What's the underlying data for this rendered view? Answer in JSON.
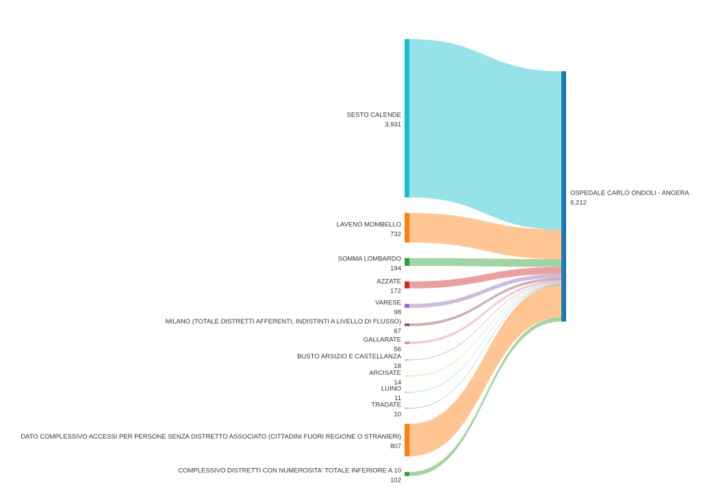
{
  "chart_data": {
    "type": "sankey",
    "title": "",
    "legend": "none",
    "orientation": "horizontal",
    "flow_opacity": 0.45,
    "target": {
      "name": "OSPEDALE CARLO ONDOLI - ANGERA",
      "value": 6212,
      "value_label": "6,212",
      "color": "#1F77B4"
    },
    "sources": [
      {
        "name": "SESTO CALENDE",
        "value": 3931,
        "value_label": "3,931",
        "color": "#17BECF"
      },
      {
        "name": "LAVENO MOMBELLO",
        "value": 732,
        "value_label": "732",
        "color": "#FF7F0E"
      },
      {
        "name": "SOMMA LOMBARDO",
        "value": 194,
        "value_label": "194",
        "color": "#2CA02C"
      },
      {
        "name": "AZZATE",
        "value": 172,
        "value_label": "172",
        "color": "#D62728"
      },
      {
        "name": "VARESE",
        "value": 98,
        "value_label": "98",
        "color": "#9467BD"
      },
      {
        "name": "MILANO (TOTALE DISTRETTI AFFERENTI, INDISTINTI A LIVELLO DI FLUSSO)",
        "value": 67,
        "value_label": "67",
        "color": "#8C564B"
      },
      {
        "name": "GALLARATE",
        "value": 56,
        "value_label": "56",
        "color": "#E377C2"
      },
      {
        "name": "BUSTO ARSIZIO E CASTELLANZA",
        "value": 18,
        "value_label": "18",
        "color": "#7F7F7F"
      },
      {
        "name": "ARCISATE",
        "value": 14,
        "value_label": "14",
        "color": "#BCBD22"
      },
      {
        "name": "LUINO",
        "value": 11,
        "value_label": "11",
        "color": "#17BECF"
      },
      {
        "name": "TRADATE",
        "value": 10,
        "value_label": "10",
        "color": "#1F77B4"
      },
      {
        "name": "DATO COMPLESSIVO ACCESSI PER PERSONE SENZA DISTRETTO ASSOCIATO (CITTADINI FUORI REGIONE O STRANIERI)",
        "value": 807,
        "value_label": "807",
        "color": "#FF7F0E"
      },
      {
        "name": "COMPLESSIVO DISTRETTI CON NUMEROSITA' TOTALE INFERIORE A 10",
        "value": 102,
        "value_label": "102",
        "color": "#2CA02C"
      }
    ]
  }
}
